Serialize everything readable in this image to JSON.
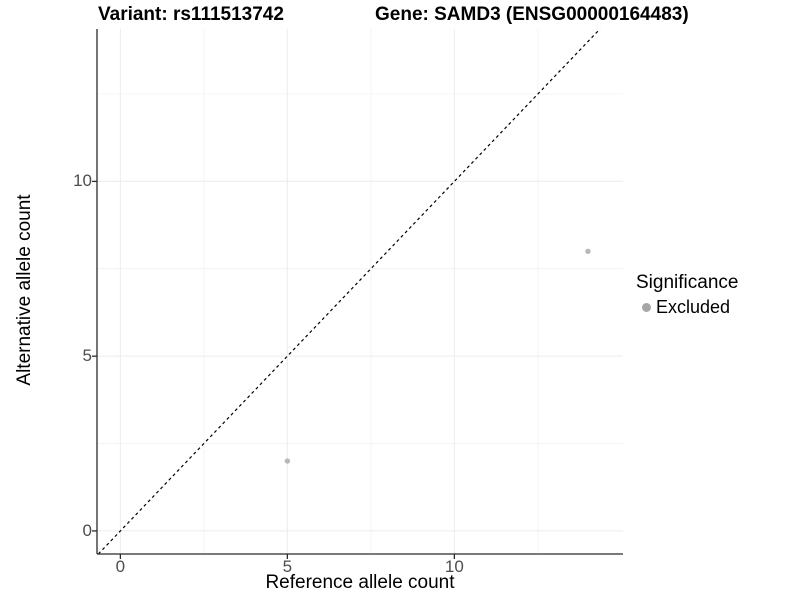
{
  "chart_data": {
    "type": "scatter",
    "title_left": "Variant: rs111513742",
    "title_right": "Gene: SAMD3 (ENSG00000164483)",
    "xlabel": "Reference allele count",
    "ylabel": "Alternative allele count",
    "xlim": [
      -0.7,
      15.05
    ],
    "ylim": [
      -0.66,
      14.36
    ],
    "x_major_ticks": [
      0,
      5,
      10
    ],
    "y_major_ticks": [
      0,
      5,
      10
    ],
    "x_minor_ticks": [
      2.5,
      7.5,
      12.5
    ],
    "y_minor_ticks": [
      2.5,
      7.5,
      12.5
    ],
    "grid": true,
    "identity_line": {
      "slope": 1,
      "intercept": 0,
      "style": "dashed",
      "color": "#000000"
    },
    "series": [
      {
        "name": "Excluded",
        "color": "#b8b8b8",
        "points": [
          {
            "x": 5,
            "y": 2
          },
          {
            "x": 14,
            "y": 8
          }
        ]
      }
    ],
    "legend": {
      "title": "Significance",
      "position": "right",
      "entries": [
        {
          "label": "Excluded",
          "color": "#a6a6a6"
        }
      ]
    },
    "colors": {
      "background": "#ffffff",
      "axis_line": "#2b2b2b",
      "tick_mark": "#2b2b2b",
      "tick_label": "#4d4d4d",
      "grid_major": "#ececec",
      "grid_minor": "#f4f4f4",
      "point": "#b8b8b8"
    }
  }
}
